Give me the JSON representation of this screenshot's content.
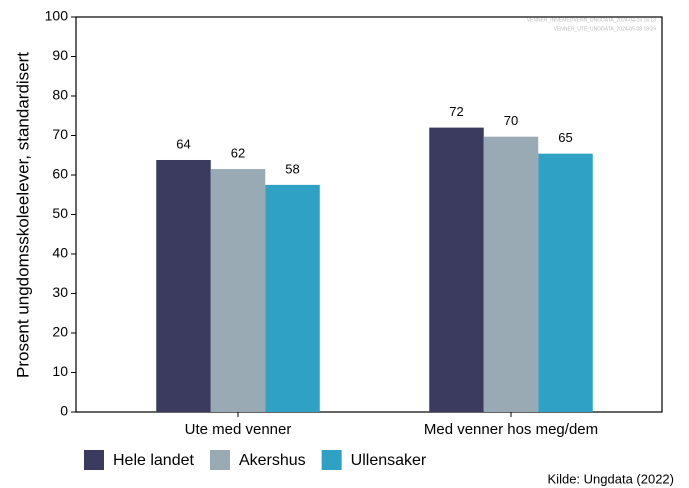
{
  "chart_data": {
    "type": "bar",
    "y_label": "Prosent ungdomsskoleelever, standardisert",
    "categories": [
      "Ute med venner",
      "Med venner hos meg/dem"
    ],
    "series": [
      {
        "name": "Hele landet",
        "color": "#3a3b5f",
        "values": [
          63.8,
          72.0
        ],
        "value_labels": [
          "64",
          "72"
        ]
      },
      {
        "name": "Akershus",
        "color": "#99aab5",
        "values": [
          61.5,
          69.7
        ],
        "value_labels": [
          "62",
          "70"
        ]
      },
      {
        "name": "Ullensaker",
        "color": "#2ea1c4",
        "values": [
          57.5,
          65.4
        ],
        "value_labels": [
          "58",
          "65"
        ]
      }
    ],
    "ylim": [
      0,
      100
    ],
    "yticks": [
      0,
      10,
      20,
      30,
      40,
      50,
      60,
      70,
      80,
      90,
      100
    ],
    "annotations": [
      "VENNER_INNEMEDVENN_UNGDATA_2024-04-16 16:13",
      "VENNER_UTE_UNGDATA_2024-05-08 18:29"
    ],
    "source": "Kilde: Ungdata (2022)",
    "legend": "bottom"
  }
}
